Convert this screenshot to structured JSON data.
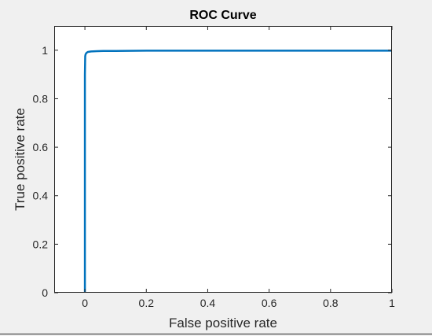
{
  "chart_data": {
    "type": "line",
    "title": "ROC Curve",
    "xlabel": "False positive rate",
    "ylabel": "True positive rate",
    "xlim": [
      -0.1,
      1
    ],
    "ylim": [
      0,
      1.1
    ],
    "xticks": [
      0,
      0.2,
      0.4,
      0.6,
      0.8,
      1
    ],
    "xtick_labels": [
      "0",
      "0.2",
      "0.4",
      "0.6",
      "0.8",
      "1"
    ],
    "yticks": [
      0,
      0.2,
      0.4,
      0.6,
      0.8,
      1
    ],
    "ytick_labels": [
      "0",
      "0.2",
      "0.4",
      "0.6",
      "0.8",
      "1"
    ],
    "grid": false,
    "legend": "none",
    "series": [
      {
        "color": "#0072bd",
        "x": [
          0,
          0,
          0.001,
          0.002,
          0.004,
          0.006,
          0.01,
          0.02,
          0.04,
          0.06,
          0.1,
          0.2,
          0.4,
          0.6,
          0.8,
          1
        ],
        "y": [
          0,
          0.9,
          0.975,
          0.982,
          0.987,
          0.99,
          0.993,
          0.995,
          0.996,
          0.997,
          0.997,
          0.998,
          0.998,
          0.998,
          0.998,
          0.998
        ]
      }
    ]
  }
}
